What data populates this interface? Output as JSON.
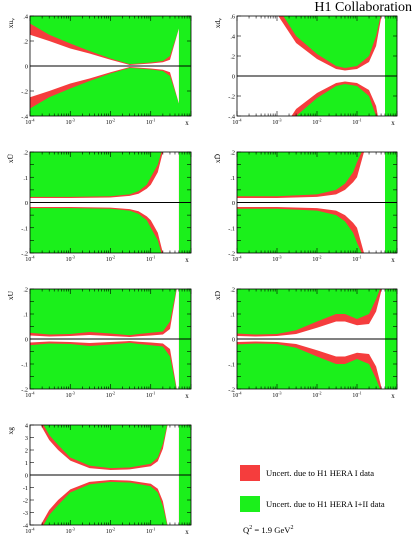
{
  "header": {
    "collaboration": "H1 Collaboration"
  },
  "legend": {
    "hera1": {
      "label": "Uncert. due to H1 HERA I data",
      "color": "#f53d3d"
    },
    "hera12": {
      "label": "Uncert. due to H1 HERA I+II data",
      "color": "#1bf01b"
    },
    "q2_prefix": "Q",
    "q2_exp": "2",
    "q2_suffix": " = 1.9 GeV",
    "q2_unit_exp": "2"
  },
  "chart_data": [
    {
      "id": "xuv",
      "type": "area",
      "ylabel": "xu_v",
      "xlabel": "x",
      "xscale": "log",
      "xlim": [
        0.0001,
        1
      ],
      "ylim": [
        -0.4,
        0.4
      ],
      "yticks": [
        -0.4,
        -0.2,
        0,
        0.2,
        0.4
      ],
      "x": [
        0.0001,
        0.0003,
        0.001,
        0.003,
        0.01,
        0.03,
        0.05,
        0.1,
        0.2,
        0.3,
        0.5
      ],
      "red_outer": [
        0.34,
        0.25,
        0.18,
        0.12,
        0.06,
        0.015,
        0.02,
        0.028,
        0.04,
        0.08,
        0.3
      ],
      "green_outer": [
        0.25,
        0.2,
        0.14,
        0.1,
        0.05,
        0.008,
        0.013,
        0.02,
        0.03,
        0.05,
        0.3
      ]
    },
    {
      "id": "xdv",
      "type": "area",
      "ylabel": "xd_v",
      "xlabel": "x",
      "xscale": "log",
      "xlim": [
        0.0001,
        1
      ],
      "ylim": [
        -0.4,
        0.6
      ],
      "yticks": [
        -0.4,
        -0.2,
        0,
        0.2,
        0.4,
        0.6
      ],
      "x": [
        0.0001,
        0.0003,
        0.001,
        0.003,
        0.01,
        0.03,
        0.05,
        0.1,
        0.2,
        0.3,
        0.5
      ],
      "red_outer": [
        0.9,
        0.9,
        0.7,
        0.4,
        0.22,
        0.1,
        0.08,
        0.1,
        0.2,
        0.4,
        0.8
      ],
      "green_outer": [
        0.9,
        0.9,
        0.62,
        0.33,
        0.17,
        0.07,
        0.055,
        0.07,
        0.14,
        0.3,
        0.8
      ]
    },
    {
      "id": "xubar",
      "type": "area",
      "ylabel": "xŪ",
      "xlabel": "x",
      "xscale": "log",
      "xlim": [
        0.0001,
        1
      ],
      "ylim": [
        -0.2,
        0.2
      ],
      "yticks": [
        -0.2,
        -0.15,
        -0.1,
        -0.05,
        0,
        0.05,
        0.1,
        0.15,
        0.2
      ],
      "x": [
        0.0001,
        0.001,
        0.01,
        0.03,
        0.05,
        0.08,
        0.1,
        0.15,
        0.2,
        0.3,
        0.5
      ],
      "red_outer": [
        0.022,
        0.022,
        0.025,
        0.032,
        0.045,
        0.07,
        0.1,
        0.15,
        0.22,
        0.3,
        0.3
      ],
      "green_outer": [
        0.018,
        0.018,
        0.02,
        0.026,
        0.035,
        0.055,
        0.07,
        0.12,
        0.2,
        0.3,
        0.3
      ]
    },
    {
      "id": "xdbar",
      "type": "area",
      "ylabel": "xD̄",
      "xlabel": "x",
      "xscale": "log",
      "xlim": [
        0.0001,
        1
      ],
      "ylim": [
        -0.2,
        0.2
      ],
      "yticks": [
        -0.2,
        -0.15,
        -0.1,
        -0.05,
        0,
        0.05,
        0.1,
        0.15,
        0.2
      ],
      "x": [
        0.0001,
        0.001,
        0.01,
        0.03,
        0.05,
        0.08,
        0.1,
        0.15,
        0.2,
        0.3,
        0.5
      ],
      "red_outer": [
        0.025,
        0.025,
        0.032,
        0.05,
        0.075,
        0.12,
        0.16,
        0.22,
        0.3,
        0.3,
        0.3
      ],
      "green_outer": [
        0.018,
        0.018,
        0.022,
        0.032,
        0.05,
        0.08,
        0.1,
        0.2,
        0.3,
        0.3,
        0.3
      ]
    },
    {
      "id": "xU",
      "type": "area",
      "ylabel": "xU",
      "xlabel": "x",
      "xscale": "log",
      "xlim": [
        0.0001,
        1
      ],
      "ylim": [
        -0.2,
        0.2
      ],
      "yticks": [
        -0.2,
        -0.15,
        -0.1,
        -0.05,
        0,
        0.05,
        0.1,
        0.15,
        0.2
      ],
      "x": [
        0.0001,
        0.0003,
        0.001,
        0.003,
        0.01,
        0.03,
        0.05,
        0.1,
        0.2,
        0.3,
        0.5
      ],
      "red_outer": [
        0.025,
        0.018,
        0.02,
        0.028,
        0.022,
        0.015,
        0.02,
        0.025,
        0.03,
        0.07,
        0.25
      ],
      "green_outer": [
        0.014,
        0.01,
        0.012,
        0.016,
        0.012,
        0.008,
        0.011,
        0.014,
        0.018,
        0.04,
        0.25
      ]
    },
    {
      "id": "xD",
      "type": "area",
      "ylabel": "xD",
      "xlabel": "x",
      "xscale": "log",
      "xlim": [
        0.0001,
        1
      ],
      "ylim": [
        -0.2,
        0.2
      ],
      "yticks": [
        -0.2,
        -0.15,
        -0.1,
        -0.05,
        0,
        0.05,
        0.1,
        0.15,
        0.2
      ],
      "x": [
        0.0001,
        0.0003,
        0.001,
        0.003,
        0.01,
        0.03,
        0.05,
        0.1,
        0.2,
        0.3,
        0.5
      ],
      "red_outer": [
        0.022,
        0.018,
        0.02,
        0.035,
        0.07,
        0.1,
        0.1,
        0.08,
        0.1,
        0.16,
        0.25
      ],
      "green_outer": [
        0.012,
        0.01,
        0.012,
        0.02,
        0.045,
        0.07,
        0.07,
        0.055,
        0.06,
        0.11,
        0.25
      ]
    },
    {
      "id": "xg",
      "type": "area",
      "ylabel": "xg",
      "xlabel": "x",
      "xscale": "log",
      "xlim": [
        0.0001,
        1
      ],
      "ylim": [
        -4,
        4
      ],
      "yticks": [
        -4,
        -3,
        -2,
        -1,
        0,
        1,
        2,
        3,
        4
      ],
      "x": [
        0.0001,
        0.0002,
        0.0003,
        0.0005,
        0.001,
        0.003,
        0.01,
        0.03,
        0.1,
        0.15,
        0.2,
        0.3,
        0.5
      ],
      "red_outer": [
        6,
        4.2,
        3.2,
        2.4,
        1.4,
        0.75,
        0.55,
        0.6,
        0.9,
        1.4,
        2.5,
        5,
        6
      ],
      "green_outer": [
        6,
        3.8,
        2.8,
        2.0,
        1.15,
        0.55,
        0.4,
        0.45,
        0.7,
        1.1,
        2.1,
        5,
        6
      ]
    }
  ]
}
